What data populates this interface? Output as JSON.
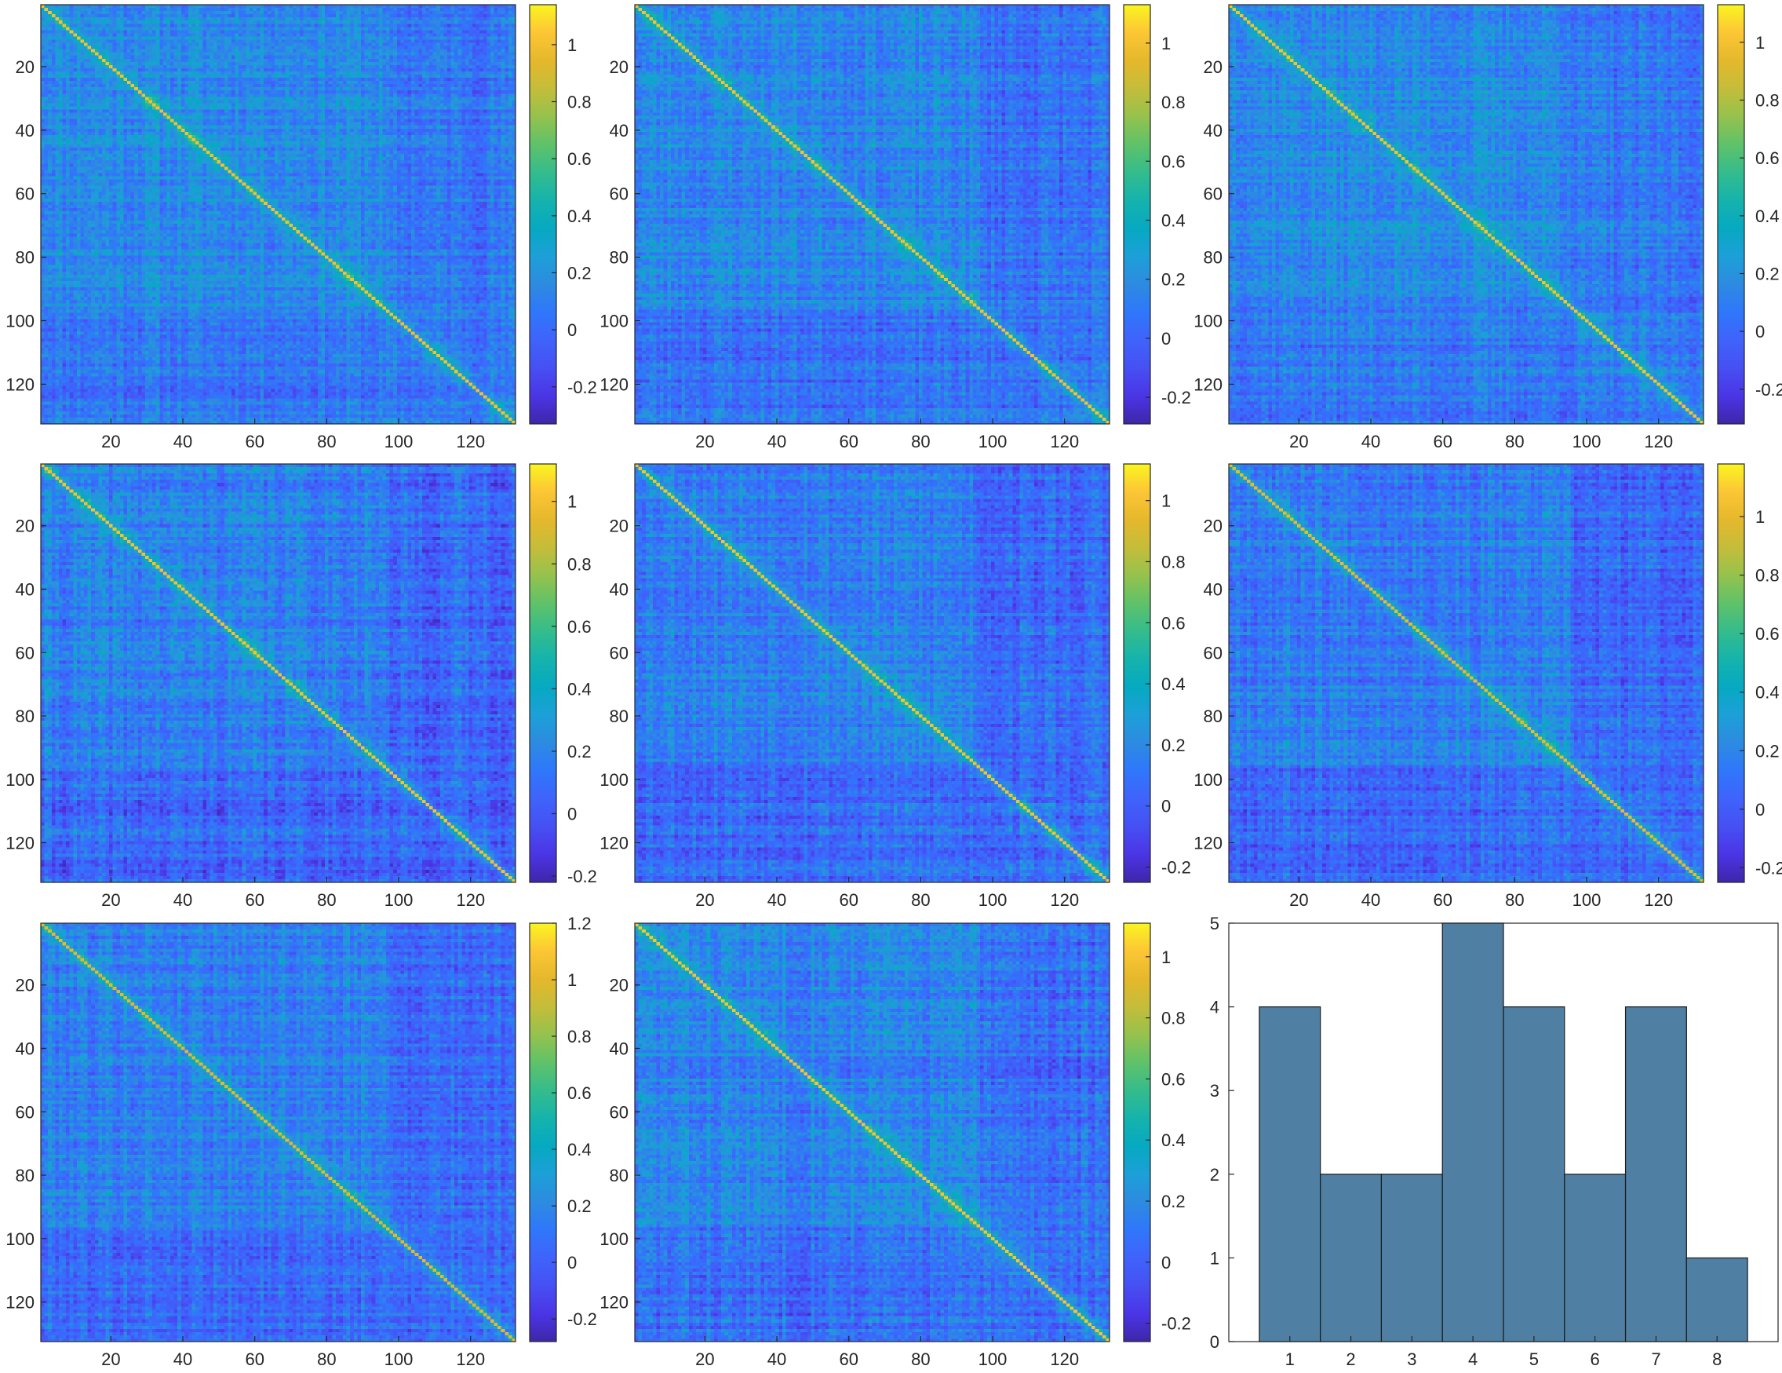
{
  "colormap": [
    "#3e26a8",
    "#4b35e5",
    "#4650f3",
    "#3f63fb",
    "#2f77fb",
    "#2d8be0",
    "#1ca0d8",
    "#06a9c1",
    "#16b3ac",
    "#34bc8c",
    "#5fc269",
    "#95c24d",
    "#c4bd3a",
    "#e5b82c",
    "#fcc635",
    "#faf520"
  ],
  "histogram_color": "#4f80a4",
  "chart_data": [
    {
      "type": "heatmap",
      "panel": "matrix-1",
      "rows": 132,
      "cols": 132,
      "diagonal_value": 1.0,
      "xticks": [
        "20",
        "40",
        "60",
        "80",
        "100",
        "120"
      ],
      "yticks": [
        "20",
        "40",
        "60",
        "80",
        "100",
        "120"
      ],
      "clim": [
        -0.33,
        1.14
      ],
      "colorbar_ticks": [
        "-0.2",
        "0",
        "0.2",
        "0.4",
        "0.6",
        "0.8",
        "1"
      ],
      "seed": 11
    },
    {
      "type": "heatmap",
      "panel": "matrix-2",
      "rows": 132,
      "cols": 132,
      "diagonal_value": 1.0,
      "xticks": [
        "20",
        "40",
        "60",
        "80",
        "100",
        "120"
      ],
      "yticks": [
        "20",
        "40",
        "60",
        "80",
        "100",
        "120"
      ],
      "clim": [
        -0.29,
        1.13
      ],
      "colorbar_ticks": [
        "-0.2",
        "0",
        "0.2",
        "0.4",
        "0.6",
        "0.8",
        "1"
      ],
      "seed": 23
    },
    {
      "type": "heatmap",
      "panel": "matrix-3",
      "rows": 132,
      "cols": 132,
      "diagonal_value": 1.0,
      "xticks": [
        "20",
        "40",
        "60",
        "80",
        "100",
        "120"
      ],
      "yticks": [
        "20",
        "40",
        "60",
        "80",
        "100",
        "120"
      ],
      "clim": [
        -0.32,
        1.13
      ],
      "colorbar_ticks": [
        "-0.2",
        "0",
        "0.2",
        "0.4",
        "0.6",
        "0.8",
        "1"
      ],
      "seed": 37
    },
    {
      "type": "heatmap",
      "panel": "matrix-4",
      "rows": 132,
      "cols": 132,
      "diagonal_value": 1.0,
      "xticks": [
        "20",
        "40",
        "60",
        "80",
        "100",
        "120"
      ],
      "yticks": [
        "20",
        "40",
        "60",
        "80",
        "100",
        "120"
      ],
      "clim": [
        -0.22,
        1.12
      ],
      "colorbar_ticks": [
        "-0.2",
        "0",
        "0.2",
        "0.4",
        "0.6",
        "0.8",
        "1"
      ],
      "seed": 41
    },
    {
      "type": "heatmap",
      "panel": "matrix-5",
      "rows": 132,
      "cols": 132,
      "diagonal_value": 1.0,
      "xticks": [
        "20",
        "40",
        "60",
        "80",
        "100",
        "120"
      ],
      "yticks": [
        "20",
        "40",
        "60",
        "80",
        "100",
        "120"
      ],
      "clim": [
        -0.25,
        1.12
      ],
      "colorbar_ticks": [
        "-0.2",
        "0",
        "0.2",
        "0.4",
        "0.6",
        "0.8",
        "1"
      ],
      "seed": 53
    },
    {
      "type": "heatmap",
      "panel": "matrix-6",
      "rows": 132,
      "cols": 132,
      "diagonal_value": 1.0,
      "xticks": [
        "20",
        "40",
        "60",
        "80",
        "100",
        "120"
      ],
      "yticks": [
        "20",
        "40",
        "60",
        "80",
        "100",
        "120"
      ],
      "clim": [
        -0.25,
        1.18
      ],
      "colorbar_ticks": [
        "-0.2",
        "0",
        "0.2",
        "0.4",
        "0.6",
        "0.8",
        "1"
      ],
      "seed": 67
    },
    {
      "type": "heatmap",
      "panel": "matrix-7",
      "rows": 132,
      "cols": 132,
      "diagonal_value": 1.0,
      "xticks": [
        "20",
        "40",
        "60",
        "80",
        "100",
        "120"
      ],
      "yticks": [
        "20",
        "40",
        "60",
        "80",
        "100",
        "120"
      ],
      "clim": [
        -0.28,
        1.2
      ],
      "colorbar_ticks": [
        "-0.2",
        "0",
        "0.2",
        "0.4",
        "0.6",
        "0.8",
        "1",
        "1.2"
      ],
      "seed": 79
    },
    {
      "type": "heatmap",
      "panel": "matrix-8",
      "rows": 132,
      "cols": 132,
      "diagonal_value": 1.0,
      "xticks": [
        "20",
        "40",
        "60",
        "80",
        "100",
        "120"
      ],
      "yticks": [
        "20",
        "40",
        "60",
        "80",
        "100",
        "120"
      ],
      "clim": [
        -0.26,
        1.11
      ],
      "colorbar_ticks": [
        "-0.2",
        "0",
        "0.2",
        "0.4",
        "0.6",
        "0.8",
        "1"
      ],
      "seed": 83
    },
    {
      "type": "bar",
      "panel": "histogram",
      "categories": [
        "1",
        "2",
        "3",
        "4",
        "5",
        "6",
        "7",
        "8"
      ],
      "values": [
        4,
        2,
        2,
        5,
        4,
        2,
        4,
        1
      ],
      "xlim": [
        0,
        9
      ],
      "ylim": [
        0,
        5
      ],
      "yticks": [
        "0",
        "1",
        "2",
        "3",
        "4",
        "5"
      ],
      "xlabel": "",
      "ylabel": "",
      "title": ""
    }
  ]
}
